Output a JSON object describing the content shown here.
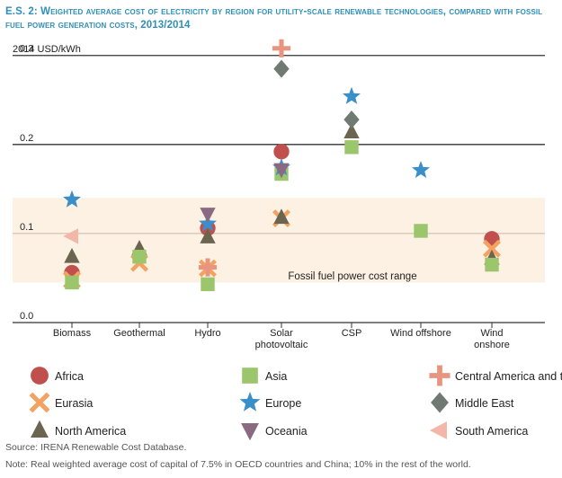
{
  "header": {
    "title_prefix": "E.S. 2:",
    "title_text": "Weighted average cost of electricity by region for utility-scale renewable technologies, compared with fossil fuel power generation costs, 2013/2014"
  },
  "chart_data": {
    "type": "scatter",
    "ylabel": "2014 USD/kWh",
    "ylim": [
      0,
      0.33
    ],
    "yticks": [
      0.0,
      0.1,
      0.2,
      0.3
    ],
    "ytick_labels": [
      "0.0",
      "0.1",
      "0.2",
      "0.3"
    ],
    "band": {
      "from": 0.045,
      "to": 0.14,
      "label": "Fossil fuel power cost range"
    },
    "categories": [
      "Biomass",
      "Geothermal",
      "Hydro",
      "Solar photovoltaic",
      "CSP",
      "Wind offshore",
      "Wind onshore"
    ],
    "category_labels": [
      [
        "Biomass"
      ],
      [
        "Geothermal"
      ],
      [
        "Hydro"
      ],
      [
        "Solar",
        "photovoltaic"
      ],
      [
        "CSP"
      ],
      [
        "Wind offshore"
      ],
      [
        "Wind",
        "onshore"
      ]
    ],
    "series": [
      {
        "name": "Africa",
        "marker": "circle",
        "color": "#c0504d",
        "values": [
          0.056,
          null,
          0.106,
          0.192,
          null,
          null,
          0.094
        ]
      },
      {
        "name": "Eurasia",
        "marker": "x",
        "color": "#f4a261",
        "values": [
          0.048,
          0.067,
          0.061,
          0.117,
          null,
          null,
          0.083
        ]
      },
      {
        "name": "North America",
        "marker": "triangle-up",
        "color": "#6b6550",
        "values": [
          0.074,
          0.083,
          0.096,
          0.118,
          0.214,
          null,
          0.072
        ]
      },
      {
        "name": "Asia",
        "marker": "square",
        "color": "#9bc66b",
        "values": [
          0.045,
          0.074,
          0.043,
          0.167,
          0.197,
          0.103,
          0.065
        ]
      },
      {
        "name": "Europe",
        "marker": "star",
        "color": "#3b8fc9",
        "values": [
          0.138,
          null,
          0.111,
          0.174,
          0.254,
          0.171,
          null
        ]
      },
      {
        "name": "Oceania",
        "marker": "triangle-down",
        "color": "#8a6a82",
        "values": [
          null,
          null,
          0.122,
          0.172,
          null,
          null,
          null
        ]
      },
      {
        "name": "Central America and the Caribbean",
        "marker": "plus",
        "color": "#e8957f",
        "values": [
          null,
          null,
          0.062,
          0.308,
          null,
          null,
          null
        ]
      },
      {
        "name": "Middle East",
        "marker": "diamond",
        "color": "#707a72",
        "values": [
          null,
          null,
          null,
          0.285,
          0.228,
          null,
          null
        ]
      },
      {
        "name": "South America",
        "marker": "triangle-left",
        "color": "#f2b7a8",
        "values": [
          0.097,
          null,
          null,
          null,
          null,
          null,
          null
        ]
      }
    ]
  },
  "footer": {
    "source": "Source: IRENA Renewable Cost Database.",
    "note": "Note: Real weighted average cost of capital of 7.5% in OECD countries and China; 10% in the rest of the world."
  }
}
